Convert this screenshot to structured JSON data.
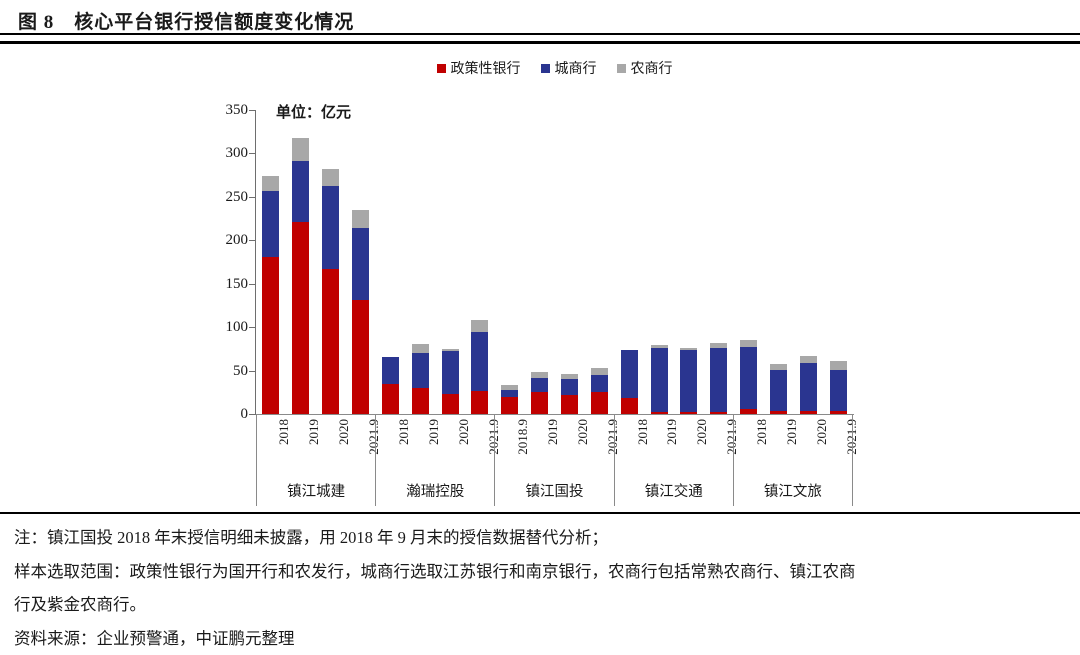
{
  "figure": {
    "title": "图 8　核心平台银行授信额度变化情况"
  },
  "chart_data": {
    "type": "bar",
    "stacked": true,
    "unit_label": "单位：亿元",
    "ylim": [
      0,
      350
    ],
    "yticks": [
      0,
      50,
      100,
      150,
      200,
      250,
      300,
      350
    ],
    "legend_position": "top-center",
    "legend": [
      {
        "name": "政策性银行",
        "color": "#C00000"
      },
      {
        "name": "城商行",
        "color": "#2A3590"
      },
      {
        "name": "农商行",
        "color": "#A8A8A8"
      }
    ],
    "groups": [
      {
        "name": "镇江城建",
        "bars": [
          {
            "label": "2018",
            "values": [
              181,
              76,
              17
            ]
          },
          {
            "label": "2019",
            "values": [
              221,
              70,
              27
            ]
          },
          {
            "label": "2020",
            "values": [
              167,
              95,
              20
            ]
          },
          {
            "label": "2021.9",
            "values": [
              131,
              83,
              21
            ]
          }
        ]
      },
      {
        "name": "瀚瑞控股",
        "bars": [
          {
            "label": "2018",
            "values": [
              35,
              31,
              0
            ]
          },
          {
            "label": "2019",
            "values": [
              30,
              40,
              11
            ]
          },
          {
            "label": "2020",
            "values": [
              23,
              49,
              3
            ]
          },
          {
            "label": "2021.9",
            "values": [
              26,
              69,
              13
            ]
          }
        ]
      },
      {
        "name": "镇江国投",
        "bars": [
          {
            "label": "2018.9",
            "values": [
              20,
              8,
              6
            ]
          },
          {
            "label": "2019",
            "values": [
              25,
              17,
              6
            ]
          },
          {
            "label": "2020",
            "values": [
              22,
              18,
              6
            ]
          },
          {
            "label": "2021.9",
            "values": [
              25,
              20,
              8
            ]
          }
        ]
      },
      {
        "name": "镇江交通",
        "bars": [
          {
            "label": "2018",
            "values": [
              19,
              55,
              0
            ]
          },
          {
            "label": "2019",
            "values": [
              2,
              74,
              3
            ]
          },
          {
            "label": "2020",
            "values": [
              2,
              72,
              2
            ]
          },
          {
            "label": "2021.9",
            "values": [
              2,
              74,
              6
            ]
          }
        ]
      },
      {
        "name": "镇江文旅",
        "bars": [
          {
            "label": "2018",
            "values": [
              6,
              71,
              8
            ]
          },
          {
            "label": "2019",
            "values": [
              3,
              48,
              7
            ]
          },
          {
            "label": "2020",
            "values": [
              3,
              56,
              8
            ]
          },
          {
            "label": "2021.9",
            "values": [
              3,
              48,
              10
            ]
          }
        ]
      }
    ]
  },
  "notes": {
    "line1": "注：镇江国投 2018 年末授信明细未披露，用 2018 年 9 月末的授信数据替代分析；",
    "line2": "样本选取范围：政策性银行为国开行和农发行，城商行选取江苏银行和南京银行，农商行包括常熟农商行、镇江农商",
    "line3": "行及紫金农商行。",
    "line4": "资料来源：企业预警通，中证鹏元整理"
  }
}
